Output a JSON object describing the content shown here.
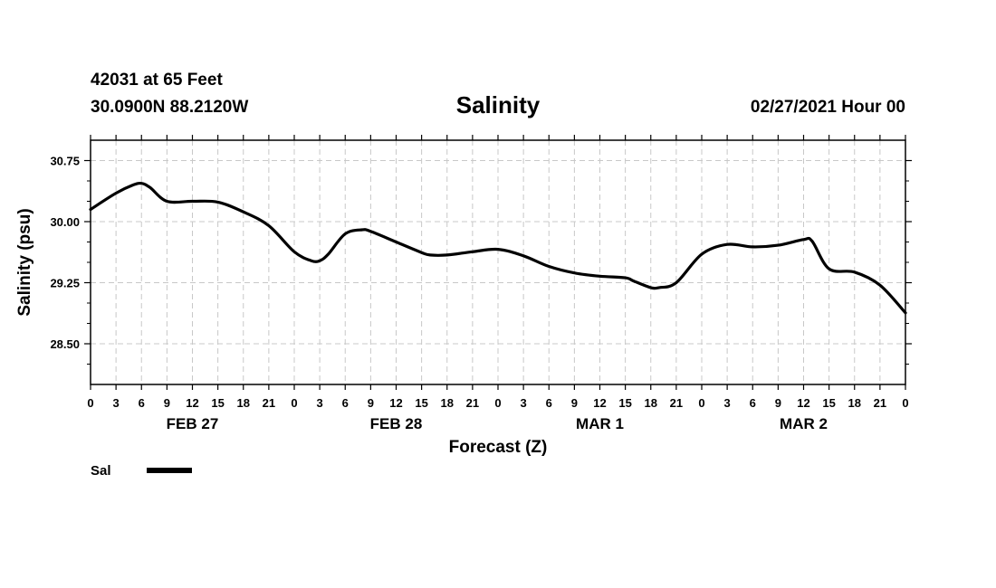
{
  "header": {
    "station": "42031 at 65 Feet",
    "location": "30.0900N 88.2120W",
    "title": "Salinity",
    "run": "02/27/2021 Hour 00"
  },
  "chart_data": {
    "type": "line",
    "title": "Salinity",
    "xlabel": "Forecast (Z)",
    "ylabel": "Salinity (psu)",
    "ylim": [
      28.0,
      31.0
    ],
    "y_ticks": [
      "30.75",
      "30.00",
      "29.25",
      "28.50"
    ],
    "x_hours_range": [
      0,
      96
    ],
    "x_tick_labels": [
      "0",
      "3",
      "6",
      "9",
      "12",
      "15",
      "18",
      "21",
      "0",
      "3",
      "6",
      "9",
      "12",
      "15",
      "18",
      "21",
      "0",
      "3",
      "6",
      "9",
      "12",
      "15",
      "18",
      "21",
      "0",
      "3",
      "6",
      "9",
      "12",
      "15",
      "18",
      "21",
      "0"
    ],
    "day_labels": [
      "FEB 27",
      "FEB 28",
      "MAR 1",
      "MAR 2"
    ],
    "grid": true,
    "legend": {
      "position": "bottom-left",
      "entries": [
        {
          "label": "Sal",
          "color": "#000000"
        }
      ]
    },
    "series": [
      {
        "name": "Sal",
        "x": [
          0,
          3,
          5,
          6,
          7,
          9,
          12,
          15,
          18,
          21,
          24,
          26,
          27,
          28,
          30,
          32,
          33,
          36,
          39,
          40,
          42,
          45,
          48,
          51,
          54,
          57,
          60,
          63,
          64,
          66,
          67,
          69,
          72,
          75,
          78,
          81,
          84,
          85,
          87,
          90,
          93,
          96
        ],
        "values": [
          30.15,
          30.35,
          30.45,
          30.47,
          30.42,
          30.25,
          30.25,
          30.24,
          30.12,
          29.95,
          29.63,
          29.52,
          29.52,
          29.6,
          29.85,
          29.9,
          29.88,
          29.75,
          29.62,
          29.59,
          29.59,
          29.63,
          29.66,
          29.58,
          29.45,
          29.37,
          29.33,
          29.31,
          29.27,
          29.19,
          29.19,
          29.25,
          29.6,
          29.72,
          29.69,
          29.71,
          29.78,
          29.76,
          29.42,
          29.38,
          29.22,
          28.88
        ]
      }
    ]
  }
}
